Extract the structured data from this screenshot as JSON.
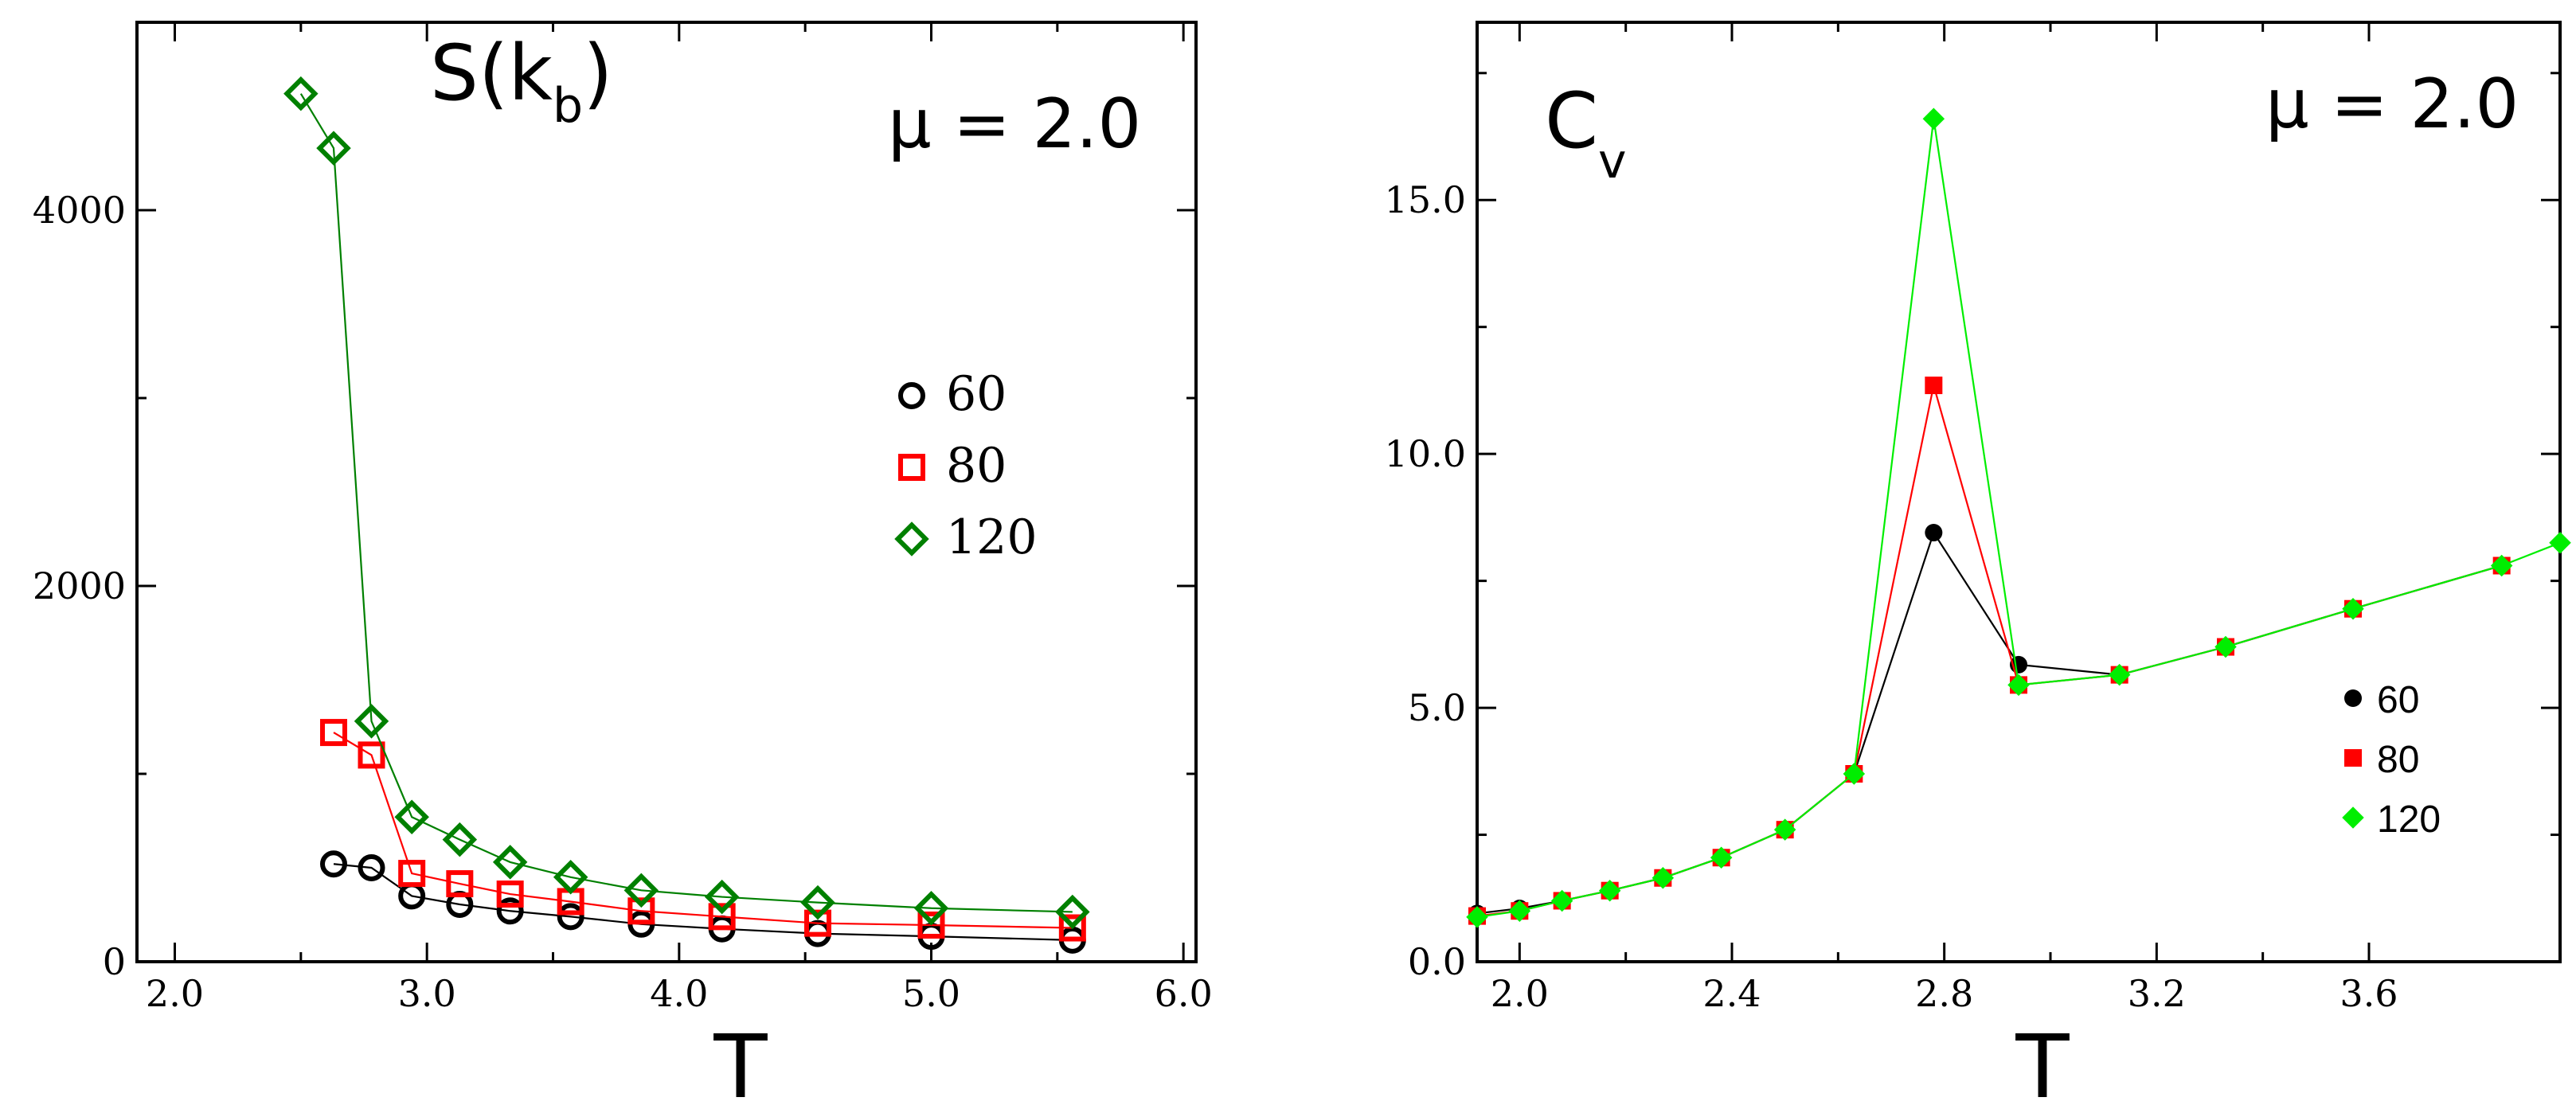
{
  "chart_data": [
    {
      "type": "line",
      "title": "S(k",
      "title_subscript": "b",
      "title_close": ")",
      "annotation": "μ = 2.0",
      "xlabel": "T",
      "ylabel": "",
      "xlim": [
        1.85,
        6.05
      ],
      "ylim": [
        0,
        5000
      ],
      "xticks": [
        2.0,
        3.0,
        4.0,
        5.0,
        6.0
      ],
      "xtick_labels": [
        "2.0",
        "3.0",
        "4.0",
        "5.0",
        "6.0"
      ],
      "yticks": [
        0,
        2000,
        4000
      ],
      "ytick_labels": [
        "0",
        "2000",
        "4000"
      ],
      "legend_position": "center-right",
      "series": [
        {
          "name": "60",
          "color": "#000000",
          "marker": "open-circle",
          "x": [
            2.63,
            2.78,
            2.94,
            3.13,
            3.33,
            3.57,
            3.85,
            4.17,
            4.55,
            5.0,
            5.56
          ],
          "y": [
            520,
            500,
            350,
            305,
            270,
            240,
            200,
            175,
            150,
            135,
            115
          ]
        },
        {
          "name": "80",
          "color": "#ff0000",
          "marker": "open-square",
          "x": [
            2.63,
            2.78,
            2.94,
            3.13,
            3.33,
            3.57,
            3.85,
            4.17,
            4.55,
            5.0,
            5.56
          ],
          "y": [
            1220,
            1100,
            470,
            415,
            360,
            320,
            270,
            240,
            205,
            195,
            180
          ]
        },
        {
          "name": "120",
          "color": "#008000",
          "marker": "open-diamond",
          "x": [
            2.5,
            2.63,
            2.78,
            2.94,
            3.13,
            3.33,
            3.57,
            3.85,
            4.17,
            4.55,
            5.0,
            5.56
          ],
          "y": [
            4620,
            4330,
            1280,
            770,
            650,
            530,
            450,
            380,
            345,
            315,
            285,
            265
          ]
        }
      ]
    },
    {
      "type": "line",
      "title": "C",
      "title_subscript": "v",
      "title_close": "",
      "annotation": "μ = 2.0",
      "xlabel": "T",
      "ylabel": "",
      "xlim": [
        1.92,
        3.96
      ],
      "ylim": [
        0,
        18.5
      ],
      "xticks": [
        2.0,
        2.4,
        2.8,
        3.2,
        3.6
      ],
      "xtick_labels": [
        "2.0",
        "2.4",
        "2.8",
        "3.2",
        "3.6"
      ],
      "yticks": [
        0,
        5,
        10,
        15
      ],
      "ytick_labels": [
        "0.0",
        "5.0",
        "10.0",
        "15.0"
      ],
      "legend_position": "lower-right",
      "series": [
        {
          "name": "60",
          "color": "#000000",
          "marker": "filled-circle",
          "x": [
            1.92,
            2.0,
            2.08,
            2.17,
            2.27,
            2.38,
            2.5,
            2.63,
            2.78,
            2.94,
            3.13,
            3.33,
            3.57,
            3.85
          ],
          "y": [
            0.95,
            1.05,
            1.2,
            1.4,
            1.65,
            2.05,
            2.6,
            3.7,
            8.45,
            5.85,
            5.65,
            6.2,
            6.95,
            7.8
          ]
        },
        {
          "name": "80",
          "color": "#ff0000",
          "marker": "filled-square",
          "x": [
            1.92,
            2.0,
            2.08,
            2.17,
            2.27,
            2.38,
            2.5,
            2.63,
            2.78,
            2.94,
            3.13,
            3.33,
            3.57,
            3.85
          ],
          "y": [
            0.9,
            1.0,
            1.2,
            1.4,
            1.65,
            2.05,
            2.6,
            3.7,
            11.35,
            5.45,
            5.65,
            6.2,
            6.95,
            7.8
          ]
        },
        {
          "name": "120",
          "color": "#00ee00",
          "marker": "filled-diamond",
          "x": [
            1.92,
            2.0,
            2.08,
            2.17,
            2.27,
            2.38,
            2.5,
            2.63,
            2.78,
            2.94,
            3.13,
            3.33,
            3.57,
            3.85,
            3.96
          ],
          "y": [
            0.88,
            1.0,
            1.2,
            1.4,
            1.65,
            2.05,
            2.6,
            3.7,
            16.6,
            5.45,
            5.65,
            6.2,
            6.95,
            7.8,
            8.25
          ]
        }
      ]
    }
  ]
}
